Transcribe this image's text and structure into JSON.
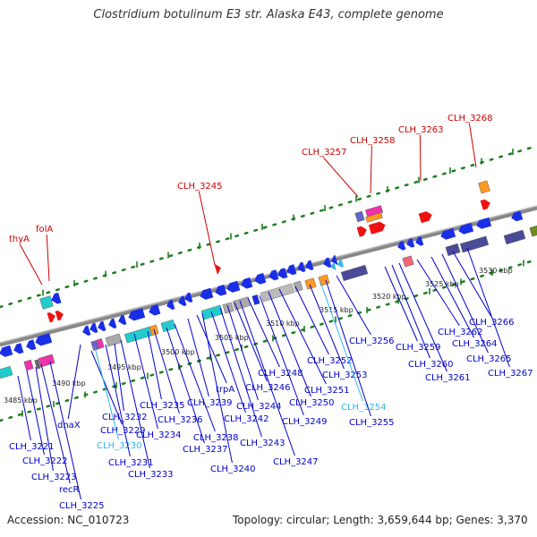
{
  "title": "Clostridium botulinum E3 str. Alaska E43, complete genome",
  "accession": "Accession: NC_010723",
  "summary": "Topology: circular; Length: 3,659,644 bp; Genes: 3,370",
  "colors": {
    "forward_label": "#cc0000",
    "reverse_label": "#0000cc",
    "highlight_label": "#33b5e5",
    "backbone": "#888888",
    "dots": "#1e7d1e",
    "forward_genes": "#ee1111",
    "reverse_genes": "#1a2ee6"
  },
  "ticks": [
    "3485 kbp",
    "3490 kbp",
    "3495 kbp",
    "3500 kbp",
    "3505 kbp",
    "3510 kbp",
    "3515 kbp",
    "3520 kbp",
    "3525 kbp",
    "3530 kbp"
  ],
  "forward_labels": [
    "thyA",
    "folA",
    "CLH_3245",
    "CLH_3257",
    "CLH_3258",
    "CLH_3263",
    "CLH_3268"
  ],
  "reverse_labels": [
    "CLH_3221",
    "CLH_3222",
    "CLH_3223",
    "recR",
    "CLH_3225",
    "dnaX",
    "CLH_3229",
    "CLH_3230",
    "CLH_3231",
    "CLH_3232",
    "CLH_3233",
    "CLH_3234",
    "CLH_3235",
    "CLH_3236",
    "CLH_3237",
    "CLH_3238",
    "CLH_3239",
    "trpA",
    "CLH_3240",
    "CLH_3242",
    "CLH_3243",
    "CLH_3244",
    "CLH_3246",
    "CLH_3247",
    "CLH_3248",
    "CLH_3249",
    "CLH_3250",
    "CLH_3251",
    "CLH_3252",
    "CLH_3253",
    "CLH_3254",
    "CLH_3255",
    "CLH_3256",
    "CLH_3259",
    "CLH_3260",
    "CLH_3261",
    "CLH_3262",
    "CLH_3264",
    "CLH_3265",
    "CLH_3266",
    "CLH_3267"
  ]
}
